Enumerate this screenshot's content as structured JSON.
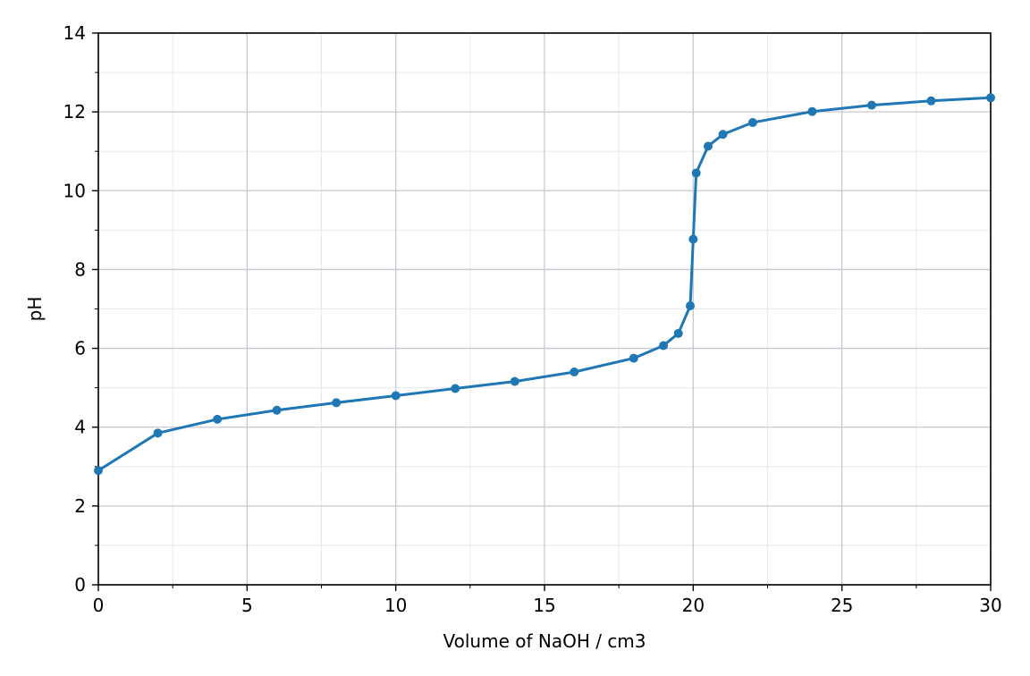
{
  "chart_data": {
    "type": "line",
    "title": "",
    "xlabel": "Volume of NaOH / cm3",
    "ylabel": "pH",
    "xlim": [
      0,
      30
    ],
    "ylim": [
      0,
      14
    ],
    "xticks": [
      0,
      5,
      10,
      15,
      20,
      25,
      30
    ],
    "yticks": [
      0,
      2,
      4,
      6,
      8,
      10,
      12,
      14
    ],
    "x_minor_step": 2.5,
    "y_minor_step": 1,
    "grid": true,
    "legend": "none",
    "series": [
      {
        "color": "#1f77b4",
        "marker": "circle",
        "x": [
          0,
          2,
          4,
          6,
          8,
          10,
          12,
          14,
          16,
          18,
          19,
          19.5,
          19.9,
          20,
          20.1,
          20.5,
          21,
          22,
          24,
          26,
          28,
          30
        ],
        "y": [
          2.9,
          3.85,
          4.2,
          4.43,
          4.62,
          4.8,
          4.98,
          5.16,
          5.4,
          5.75,
          6.07,
          6.38,
          7.08,
          8.77,
          10.45,
          11.13,
          11.43,
          11.73,
          12.01,
          12.17,
          12.28,
          12.36
        ]
      }
    ]
  }
}
